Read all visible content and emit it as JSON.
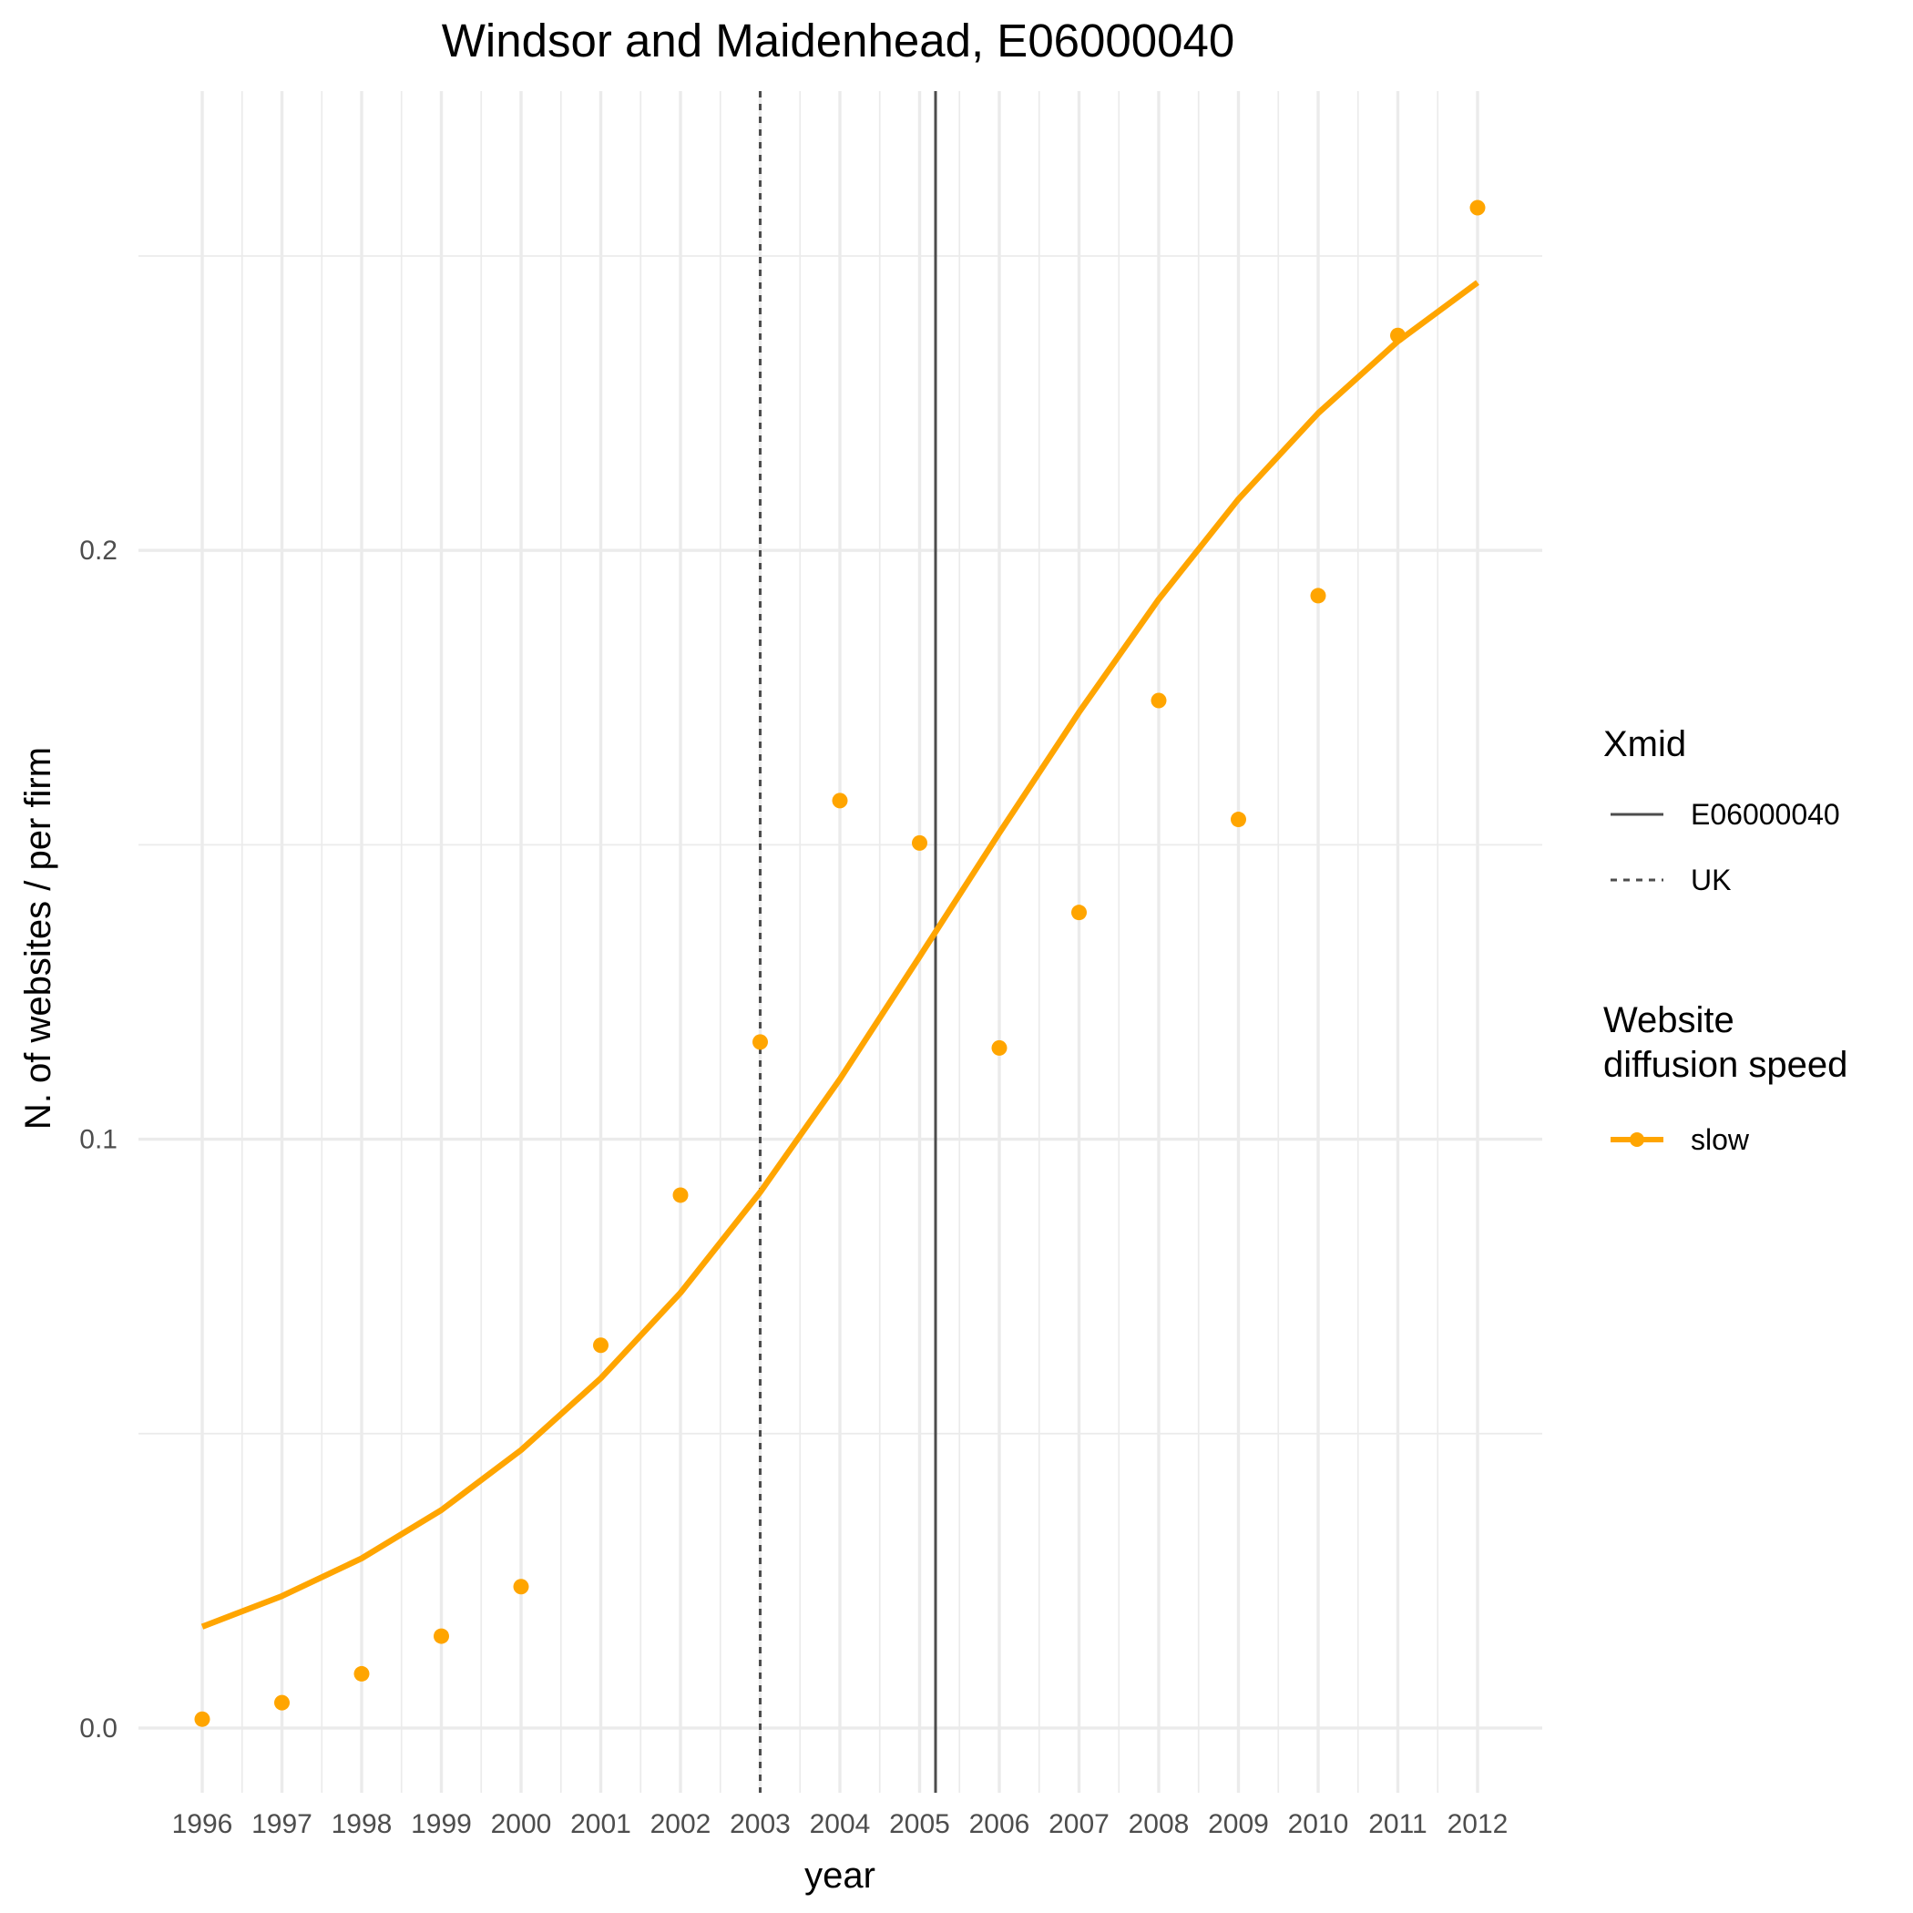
{
  "chart_data": {
    "type": "scatter",
    "title": "Windsor and Maidenhead, E06000040",
    "xlabel": "year",
    "ylabel": "N. of websites / per firm",
    "categories": [
      "1996",
      "1997",
      "1998",
      "1999",
      "2000",
      "2001",
      "2002",
      "2003",
      "2004",
      "2005",
      "2006",
      "2007",
      "2008",
      "2009",
      "2010",
      "2011",
      "2012"
    ],
    "ylim": [
      -0.011,
      0.278
    ],
    "y_ticks": [
      0.0,
      0.1,
      0.2
    ],
    "y_tick_labels": [
      "0.0",
      "0.1",
      "0.2"
    ],
    "grid": true,
    "series": [
      {
        "name": "slow",
        "color": "#FFA500",
        "points": [
          0.0015,
          0.0043,
          0.0092,
          0.0156,
          0.024,
          0.065,
          0.0905,
          0.1165,
          0.1575,
          0.1503,
          0.1155,
          0.1385,
          0.1745,
          0.1543,
          0.1923,
          0.2365,
          0.2582
        ],
        "fit": [
          0.0172,
          0.0224,
          0.0288,
          0.037,
          0.0472,
          0.0594,
          0.0739,
          0.091,
          0.1102,
          0.131,
          0.152,
          0.1725,
          0.1917,
          0.2087,
          0.2233,
          0.2355,
          0.2455
        ]
      }
    ],
    "vlines": [
      {
        "label": "E06000040",
        "x": 2005.2,
        "style": "solid",
        "color": "#4d4d4d"
      },
      {
        "label": "UK",
        "x": 2003.0,
        "style": "dashed",
        "color": "#4d4d4d"
      }
    ],
    "legend": {
      "position": "right",
      "xmid_title": "Xmid",
      "xmid_items": [
        "E06000040",
        "UK"
      ],
      "speed_title_lines": [
        "Website",
        "diffusion speed"
      ],
      "speed_items": [
        "slow"
      ]
    }
  }
}
